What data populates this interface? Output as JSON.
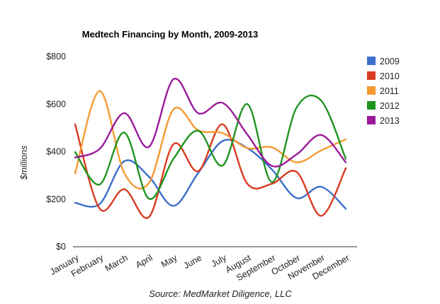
{
  "chart_data": {
    "type": "line",
    "title": "Medtech Financing by Month, 2009-2013",
    "ylabel": "$millions",
    "xlabel": "",
    "source": "Source: MedMarket Diligence, LLC",
    "ylim": [
      0,
      800
    ],
    "yticks": [
      0,
      200,
      400,
      600,
      800
    ],
    "ytick_labels": [
      "$0",
      "$200",
      "$400",
      "$600",
      "$800"
    ],
    "categories": [
      "January",
      "February",
      "March",
      "April",
      "May",
      "June",
      "July",
      "August",
      "September",
      "October",
      "November",
      "December"
    ],
    "grid": false,
    "legend_position": "right",
    "series": [
      {
        "name": "2009",
        "color": "#3b6fcb",
        "values": [
          185,
          180,
          360,
          295,
          172,
          310,
          445,
          415,
          325,
          205,
          252,
          160
        ]
      },
      {
        "name": "2010",
        "color": "#d83b21",
        "values": [
          515,
          160,
          242,
          125,
          432,
          318,
          515,
          265,
          265,
          315,
          130,
          330
        ]
      },
      {
        "name": "2011",
        "color": "#f59a32",
        "values": [
          308,
          655,
          310,
          268,
          578,
          490,
          478,
          415,
          418,
          355,
          405,
          452
        ]
      },
      {
        "name": "2012",
        "color": "#1f9420",
        "values": [
          398,
          262,
          480,
          202,
          370,
          488,
          342,
          600,
          272,
          585,
          615,
          370
        ]
      },
      {
        "name": "2013",
        "color": "#9a1a9a",
        "values": [
          375,
          412,
          562,
          420,
          705,
          562,
          605,
          472,
          340,
          388,
          470,
          355
        ]
      }
    ]
  }
}
